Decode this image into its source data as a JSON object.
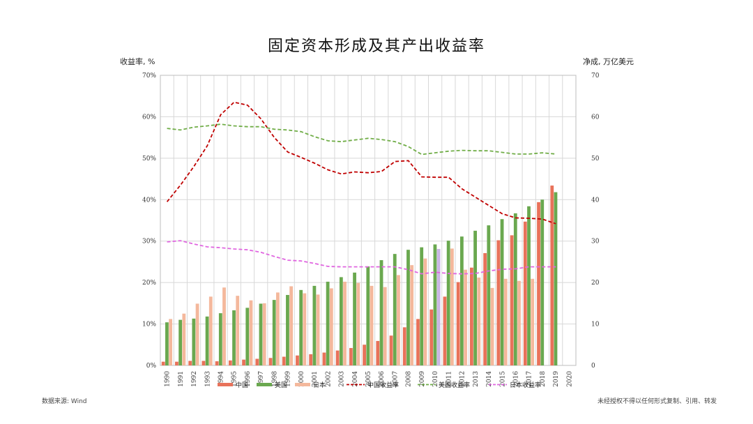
{
  "header": {
    "title": "固定资本形成及其产出收益率",
    "left_axis_title": "收益率, %",
    "right_axis_title": "净成, 万亿美元"
  },
  "footer": {
    "source": "数据来源: Wind",
    "copyright": "未经授权不得以任何形式复制、引用、转发"
  },
  "colors": {
    "china_bar": "#e8725a",
    "usa_bar": "#6aa84f",
    "japan_bar": "#f4b89c",
    "china_line": "#c00000",
    "usa_line": "#70ad47",
    "japan_line": "#e066e0",
    "grid": "#d8d8d8",
    "highlight_bar": "#c9b6e4"
  },
  "chart_data": {
    "type": "bar",
    "categories": [
      "1990",
      "1991",
      "1992",
      "1993",
      "1994",
      "1995",
      "1996",
      "1997",
      "1998",
      "1999",
      "2000",
      "2001",
      "2002",
      "2003",
      "2004",
      "2005",
      "2006",
      "2007",
      "2008",
      "2009",
      "2010",
      "2011",
      "2012",
      "2013",
      "2014",
      "2015",
      "2016",
      "2017",
      "2018",
      "2019",
      "2020"
    ],
    "left_axis": {
      "ylim": [
        0,
        70
      ],
      "ticks": [
        "0%",
        "10%",
        "20%",
        "30%",
        "40%",
        "50%",
        "60%",
        "70%"
      ]
    },
    "right_axis": {
      "ylim": [
        0,
        70
      ],
      "ticks": [
        "0",
        "10",
        "20",
        "30",
        "40",
        "50",
        "60",
        "70"
      ]
    },
    "grid": true,
    "legend_position": "bottom",
    "bar_series": [
      {
        "name": "中国",
        "axis": "right",
        "values": [
          0.9,
          0.9,
          1.1,
          1.1,
          1.0,
          1.2,
          1.4,
          1.6,
          1.8,
          2.1,
          2.4,
          2.7,
          3.1,
          3.6,
          4.2,
          5.0,
          5.9,
          7.2,
          9.2,
          11.2,
          13.5,
          16.6,
          20.1,
          23.6,
          27.1,
          30.2,
          31.4,
          34.7,
          39.4,
          43.4,
          null
        ]
      },
      {
        "name": "美国",
        "axis": "right",
        "values": [
          10.4,
          11.0,
          11.3,
          11.8,
          12.6,
          13.3,
          13.9,
          14.9,
          15.8,
          17.0,
          18.2,
          19.2,
          20.2,
          21.3,
          22.4,
          23.9,
          25.4,
          26.9,
          27.9,
          28.5,
          29.2,
          30.1,
          31.1,
          32.5,
          33.8,
          35.3,
          36.7,
          38.4,
          40.0,
          41.8,
          null
        ]
      },
      {
        "name": "日本",
        "axis": "right",
        "values": [
          11.2,
          12.5,
          14.9,
          16.6,
          18.8,
          16.8,
          15.7,
          15.0,
          17.6,
          19.1,
          17.4,
          17.1,
          18.6,
          20.2,
          19.9,
          19.2,
          18.9,
          21.8,
          24.2,
          25.8,
          28.1,
          28.2,
          23.1,
          21.2,
          18.7,
          20.9,
          20.4,
          20.9,
          null,
          null,
          null
        ]
      }
    ],
    "line_series": [
      {
        "name": "中国收益率",
        "axis": "left",
        "values": [
          39.5,
          43.5,
          48.0,
          53.0,
          60.5,
          63.5,
          62.8,
          59.5,
          55.0,
          51.5,
          50.2,
          48.8,
          47.2,
          46.2,
          46.7,
          46.5,
          46.8,
          49.2,
          49.4,
          45.5,
          45.4,
          45.4,
          42.6,
          40.6,
          38.6,
          36.6,
          35.6,
          35.5,
          35.3,
          34.2,
          null
        ]
      },
      {
        "name": "美国收益率",
        "axis": "left",
        "values": [
          57.2,
          56.8,
          57.5,
          57.8,
          58.2,
          57.8,
          57.6,
          57.6,
          57.0,
          56.8,
          56.4,
          55.2,
          54.2,
          54.0,
          54.4,
          54.8,
          54.5,
          54.0,
          52.8,
          50.9,
          51.3,
          51.7,
          51.9,
          51.8,
          51.8,
          51.4,
          51.0,
          51.0,
          51.3,
          51.0,
          null
        ]
      },
      {
        "name": "日本收益率",
        "axis": "left",
        "values": [
          29.8,
          30.1,
          29.3,
          28.6,
          28.4,
          28.1,
          27.9,
          27.3,
          26.3,
          25.4,
          25.2,
          24.6,
          23.9,
          23.8,
          23.8,
          23.8,
          23.8,
          23.8,
          23.1,
          22.1,
          22.5,
          22.2,
          22.1,
          22.2,
          22.8,
          23.2,
          23.3,
          23.8,
          23.8,
          23.8,
          null
        ]
      }
    ],
    "legend": [
      "中国",
      "美国",
      "日本",
      "中国收益率",
      "美国收益率",
      "日本收益率"
    ]
  }
}
